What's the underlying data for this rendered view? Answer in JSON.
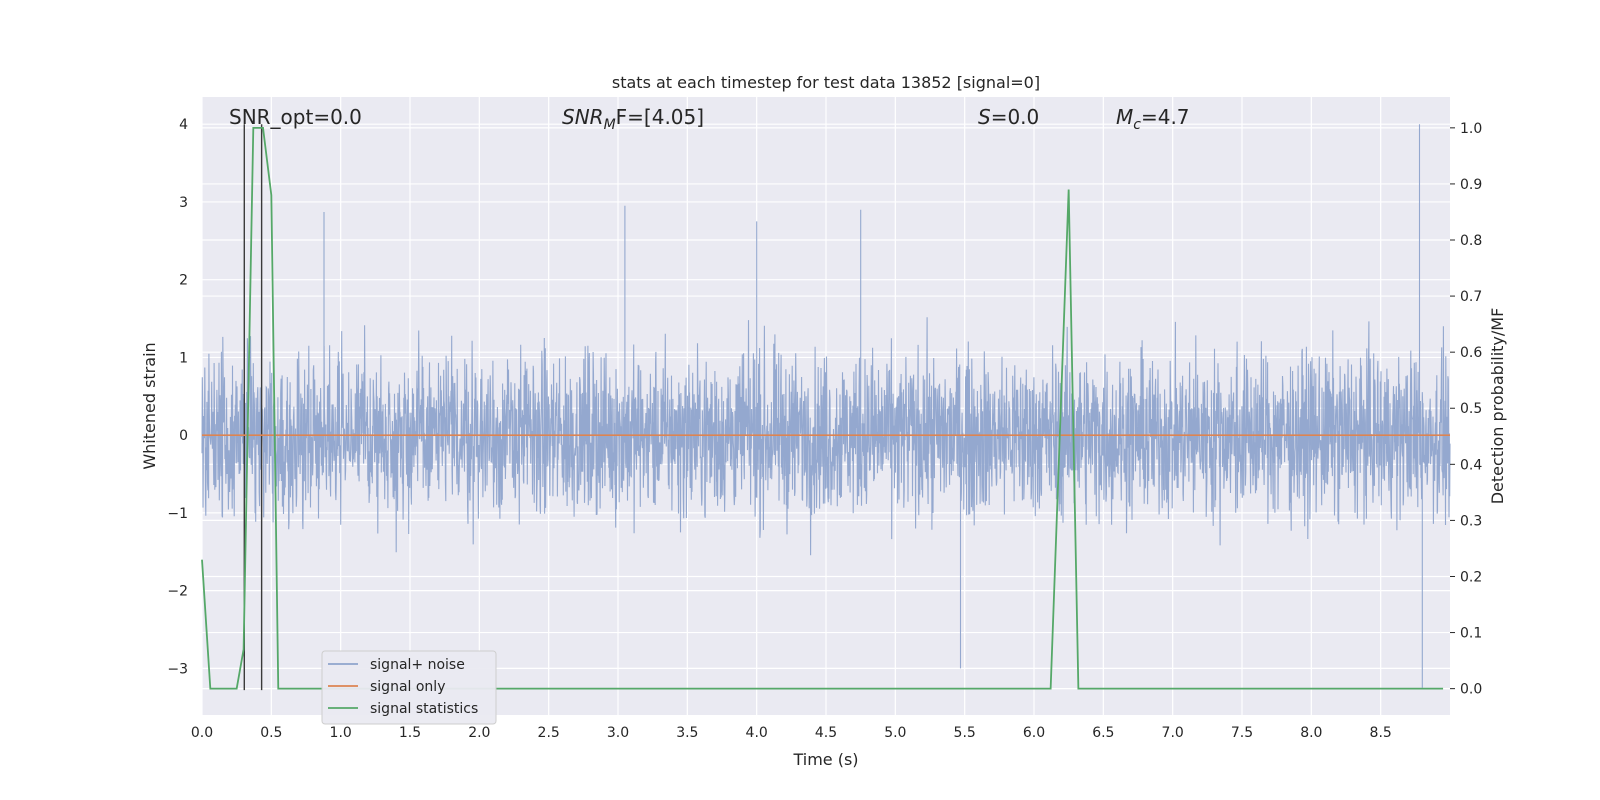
{
  "chart_data": {
    "type": "line",
    "title": "stats at each timestep for test data 13852 [signal=0]",
    "xlabel": "Time (s)",
    "ylabel": "Whitened strain",
    "y2label": "Detection probability/MF",
    "xlim": [
      0.0,
      9.0
    ],
    "ylim": [
      -3.6,
      4.35
    ],
    "y2lim": [
      -0.047,
      1.055
    ],
    "xticks": [
      "0.0",
      "0.5",
      "1.0",
      "1.5",
      "2.0",
      "2.5",
      "3.0",
      "3.5",
      "4.0",
      "4.5",
      "5.0",
      "5.5",
      "6.0",
      "6.5",
      "7.0",
      "7.5",
      "8.0",
      "8.5"
    ],
    "yticks": [
      "4",
      "3",
      "2",
      "1",
      "0",
      "−1",
      "−2",
      "−3"
    ],
    "y2ticks": [
      "1.0",
      "0.9",
      "0.8",
      "0.7",
      "0.6",
      "0.5",
      "0.4",
      "0.3",
      "0.2",
      "0.1",
      "0.0"
    ],
    "annotations": {
      "snr_opt": "SNR_opt=0.0",
      "snr_mf_main": "SNR",
      "snr_mf_sub": "M",
      "snr_mf_tail": "F=[4.05]",
      "s_main": "S",
      "s_tail": "=0.0",
      "mc_main": "M",
      "mc_sub": "c",
      "mc_tail": "=4.7"
    },
    "vlines": [
      0.305,
      0.43
    ],
    "series": [
      {
        "name": "signal+ noise",
        "color": "#8fa4cc",
        "description": "whitened noisy strain, dense noise around 0 with envelope about +/-1.8 and spikes to ~3 and 4",
        "envelope": {
          "core": 1.15,
          "spread": 1.8,
          "peaks": [
            [
              0.88,
              2.87
            ],
            [
              3.05,
              2.95
            ],
            [
              4.0,
              2.75
            ],
            [
              4.75,
              2.9
            ],
            [
              8.78,
              4.0
            ],
            [
              8.8,
              -3.25
            ],
            [
              5.47,
              -3.0
            ]
          ]
        }
      },
      {
        "name": "signal only",
        "color": "#dd8452",
        "x": [
          0.0,
          9.0
        ],
        "y": [
          0.0,
          0.0
        ]
      },
      {
        "name": "signal statistics",
        "color": "#55a868",
        "axis": "right",
        "x": [
          0.0,
          0.06,
          0.25,
          0.3,
          0.37,
          0.44,
          0.5,
          0.55,
          6.12,
          6.25,
          6.32,
          8.95
        ],
        "y": [
          0.23,
          0.0,
          0.0,
          0.07,
          1.0,
          1.0,
          0.88,
          0.0,
          0.0,
          0.89,
          0.0,
          0.0
        ]
      }
    ],
    "legend": {
      "location": "lower-left"
    }
  }
}
